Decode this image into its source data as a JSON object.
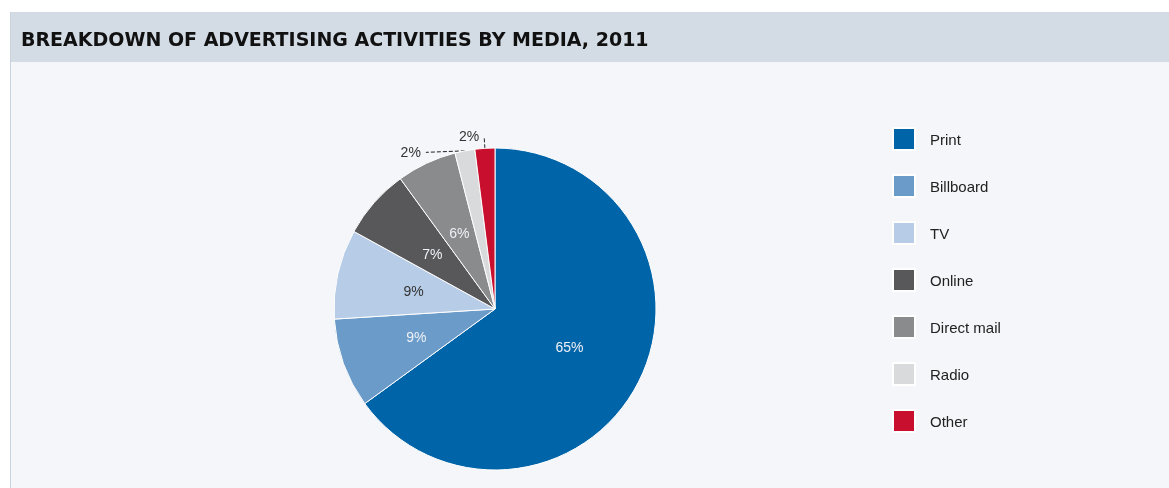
{
  "chart_data": {
    "type": "pie",
    "title": "BREAKDOWN OF ADVERTISING ACTIVITIES BY MEDIA, 2011",
    "categories": [
      "Print",
      "Billboard",
      "TV",
      "Online",
      "Direct mail",
      "Radio",
      "Other"
    ],
    "values": [
      65,
      9,
      9,
      7,
      6,
      2,
      2
    ],
    "value_labels": [
      "65%",
      "9%",
      "9%",
      "7%",
      "6%",
      "2%",
      "2%"
    ],
    "colors": [
      "#0064a8",
      "#6b9bc9",
      "#b7cce6",
      "#58585a",
      "#8a8b8d",
      "#d9dadb",
      "#c8102e"
    ],
    "legend": "right"
  }
}
